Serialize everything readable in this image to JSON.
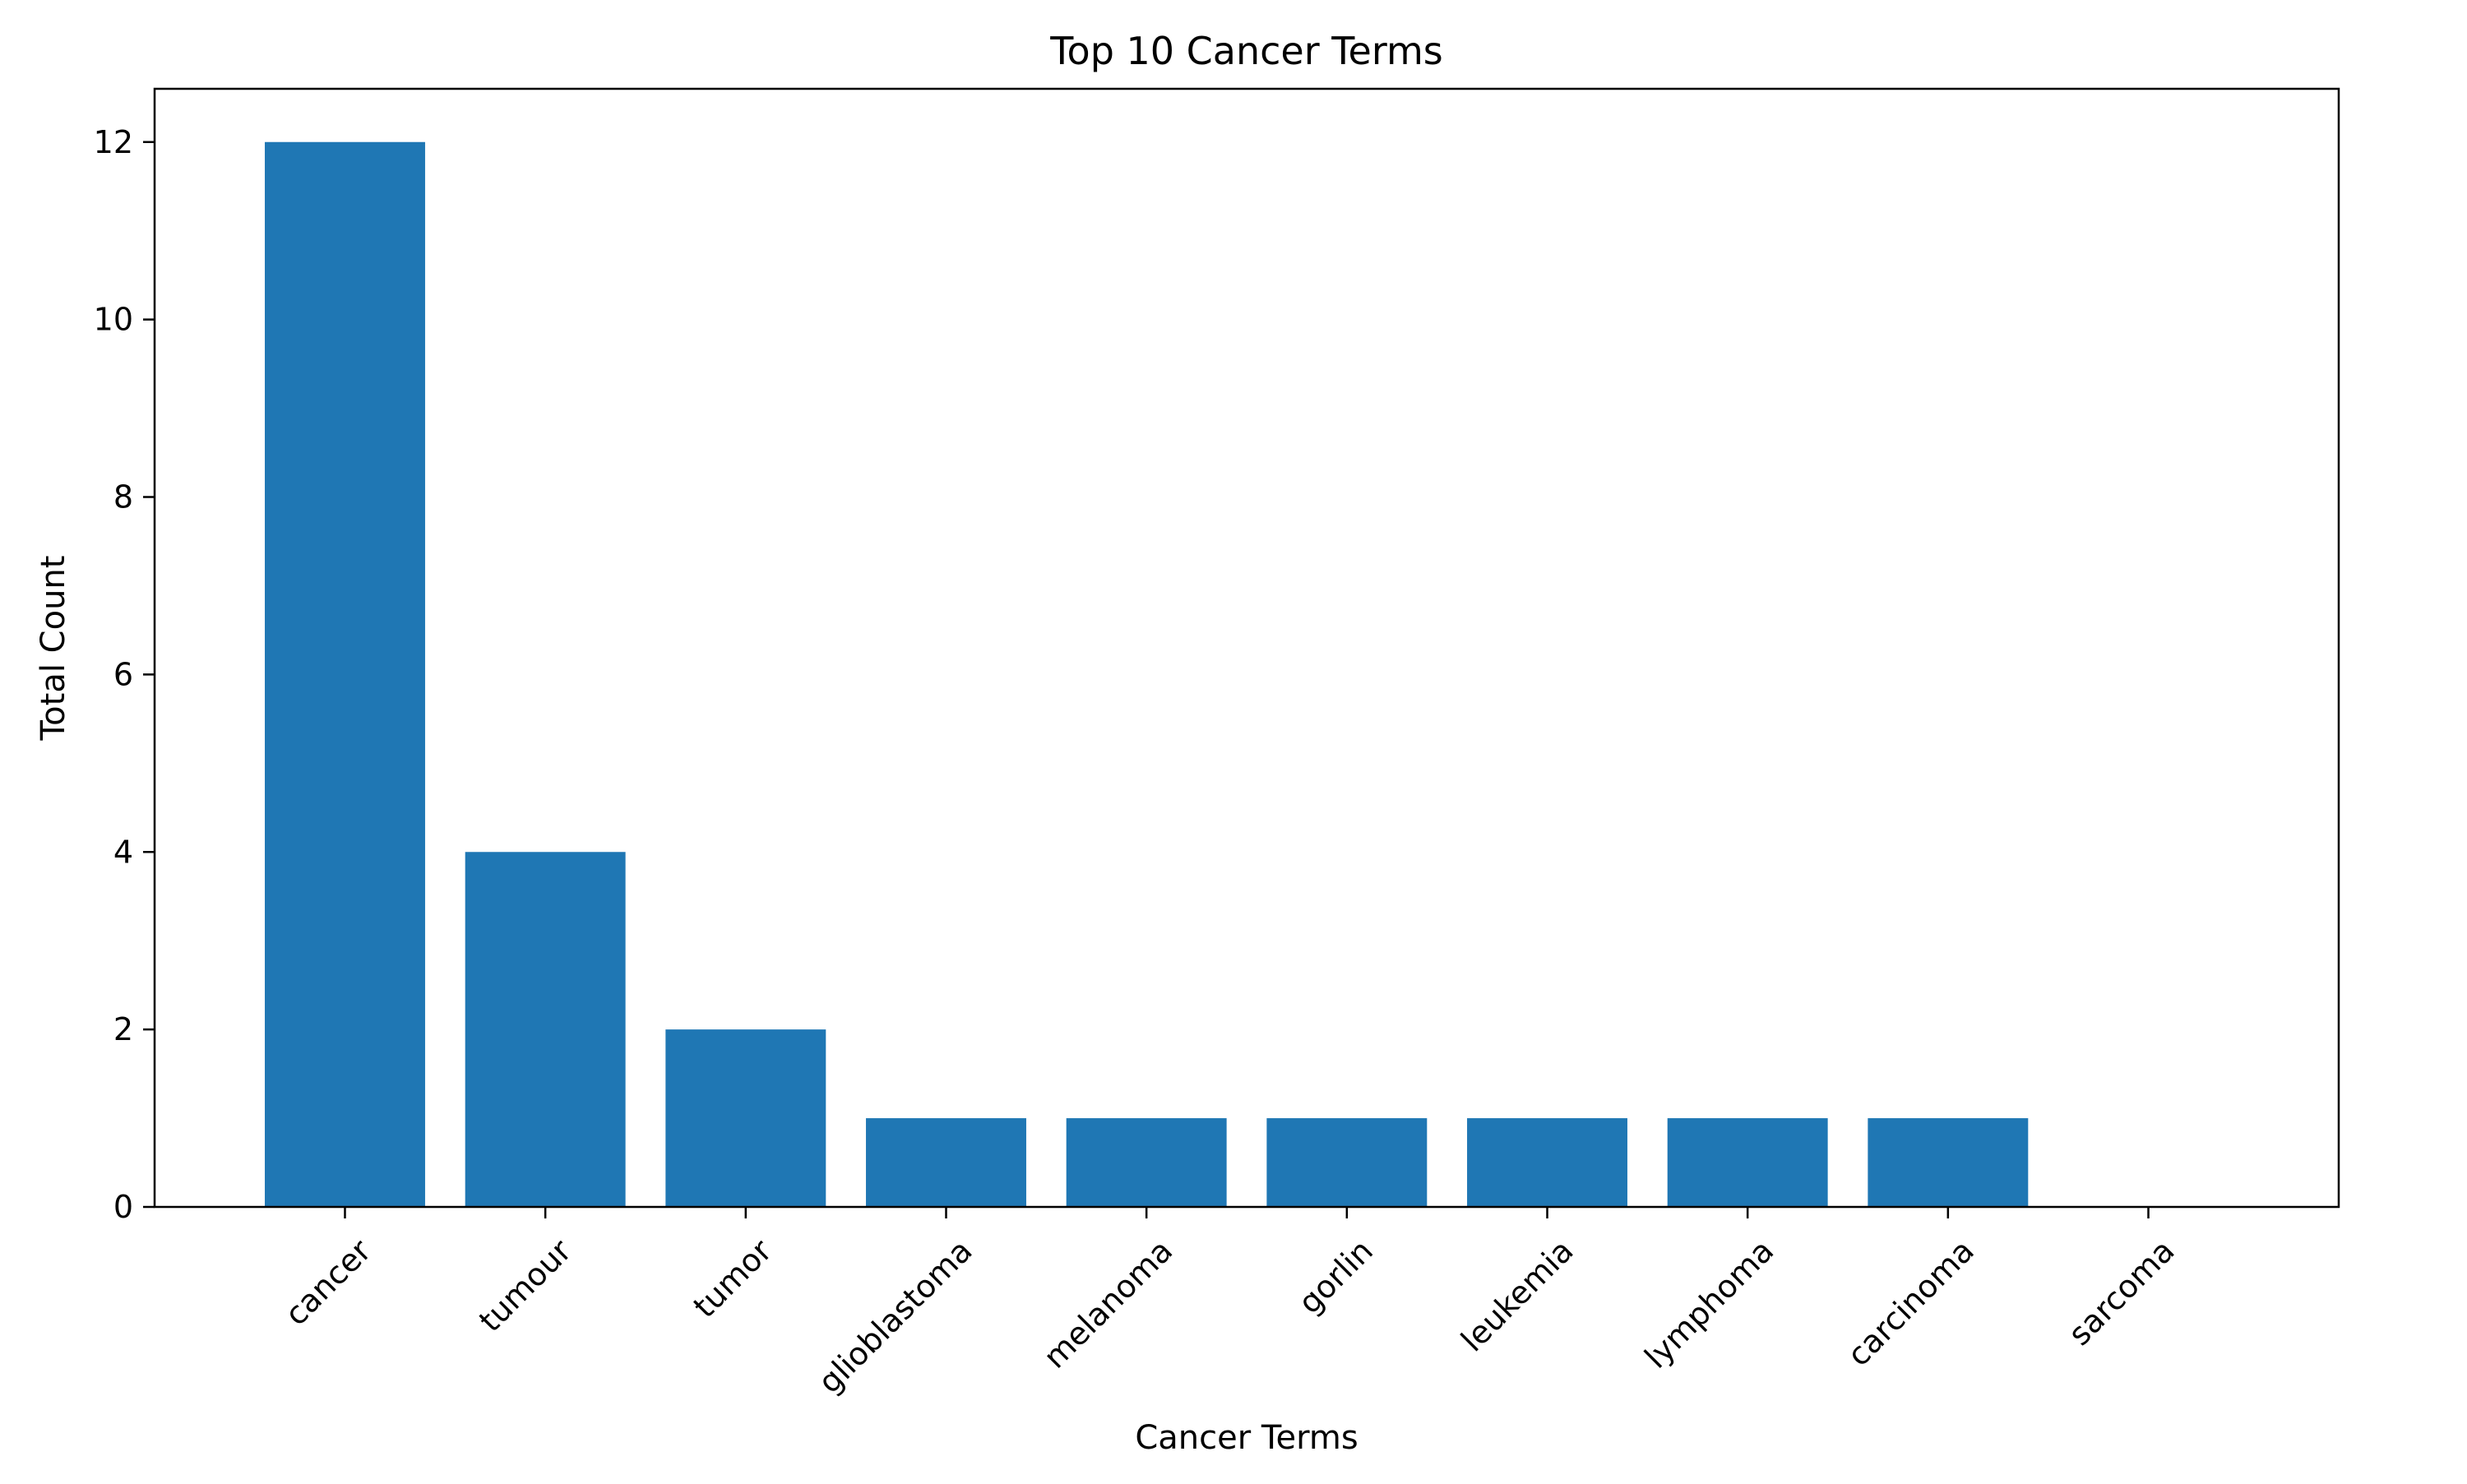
{
  "chart_data": {
    "type": "bar",
    "title": "Top 10 Cancer Terms",
    "xlabel": "Cancer Terms",
    "ylabel": "Total Count",
    "categories": [
      "cancer",
      "tumour",
      "tumor",
      "glioblastoma",
      "melanoma",
      "gorlin",
      "leukemia",
      "lymphoma",
      "carcinoma",
      "sarcoma"
    ],
    "values": [
      12,
      4,
      2,
      1,
      1,
      1,
      1,
      1,
      1,
      0
    ],
    "ylim": [
      0,
      12.6
    ],
    "yticks": [
      0,
      2,
      4,
      6,
      8,
      10,
      12
    ],
    "grid": false,
    "legend": "none",
    "bar_color": "#1f77b4"
  }
}
